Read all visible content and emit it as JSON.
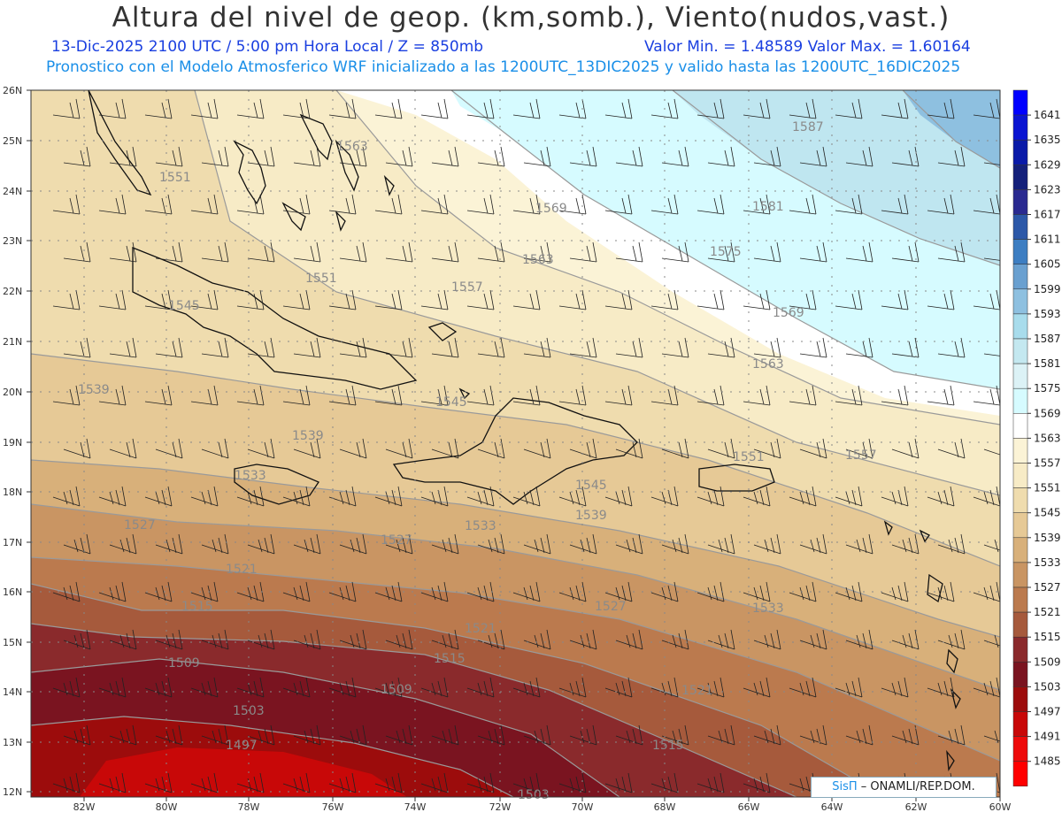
{
  "header": {
    "title": "Altura del nivel de geop. (km,somb.), Viento(nudos,vast.)",
    "line1_left": "13-Dic-2025   2100 UTC / 5:00 pm Hora Local / Z = 850mb",
    "line1_right": "Valor Min. = 1.48589   Valor Max. = 1.60164",
    "line2": "Pronostico con el Modelo Atmosferico WRF inicializado a las 1200UTC_13DIC2025 y valido hasta las  1200UTC_16DIC2025"
  },
  "credit": {
    "logo_text": "SisΠ",
    "rest": " – ONAMLI/REP.DOM."
  },
  "axes": {
    "lon_labels": [
      "82W",
      "80W",
      "78W",
      "76W",
      "74W",
      "72W",
      "70W",
      "68W",
      "66W",
      "64W",
      "62W",
      "60W"
    ],
    "lat_labels": [
      "26N",
      "25N",
      "24N",
      "23N",
      "22N",
      "21N",
      "20N",
      "19N",
      "18N",
      "17N",
      "16N",
      "15N",
      "14N",
      "13N",
      "12N"
    ]
  },
  "colorbar": {
    "labels": [
      "1641",
      "1635",
      "1629",
      "1623",
      "1617",
      "1611",
      "1605",
      "1599",
      "1593",
      "1587",
      "1581",
      "1575",
      "1569",
      "1563",
      "1557",
      "1551",
      "1545",
      "1539",
      "1533",
      "1527",
      "1521",
      "1515",
      "1509",
      "1503",
      "1497",
      "1491",
      "1485"
    ],
    "colors": [
      "#0000ff",
      "#0a14d2",
      "#0a1aa8",
      "#14207a",
      "#2a2a90",
      "#2c58a8",
      "#3d7ec2",
      "#6aa0d0",
      "#8ec0e0",
      "#a8dcec",
      "#c4e8f0",
      "#dcf2f6",
      "#d6fbff",
      "#ffffff",
      "#fbf3d6",
      "#f7ebc6",
      "#efdcae",
      "#e6c996",
      "#d8b07a",
      "#c99563",
      "#bb7a4e",
      "#a65a3c",
      "#8a2a2c",
      "#7a1420",
      "#9c0c0c",
      "#c80808",
      "#ee0a0a"
    ],
    "bottom_color": "#ff0000"
  },
  "contour_labels": [
    "1587",
    "1581",
    "1575",
    "1569",
    "1569",
    "1563",
    "1563",
    "1563",
    "1557",
    "1557",
    "1551",
    "1551",
    "1551",
    "1545",
    "1545",
    "1545",
    "1539",
    "1539",
    "1539",
    "1533",
    "1533",
    "1533",
    "1527",
    "1527",
    "1527",
    "1521",
    "1521",
    "1521",
    "1515",
    "1515",
    "1515",
    "1509",
    "1509",
    "1503",
    "1503",
    "1497"
  ],
  "map_colors": {
    "ocean_top": "#ffffff",
    "cyan_light": "#d6fbff",
    "cyan_mid": "#bfe6f0",
    "blue_top": "#8ec0e0",
    "tan_lightest": "#fbf3d6",
    "tan_1551": "#f7ebc6",
    "tan_1545": "#efdcae",
    "tan_1539": "#e6c996",
    "tan_1533": "#d8b07a",
    "brown_1527": "#c99563",
    "brown_1521": "#bb7a4e",
    "brown_1515": "#a65a3c",
    "maroon_1509": "#8a2a2c",
    "maroon_1503": "#7a1420",
    "red_1497": "#9c0c0c",
    "red_1491": "#c80808"
  }
}
